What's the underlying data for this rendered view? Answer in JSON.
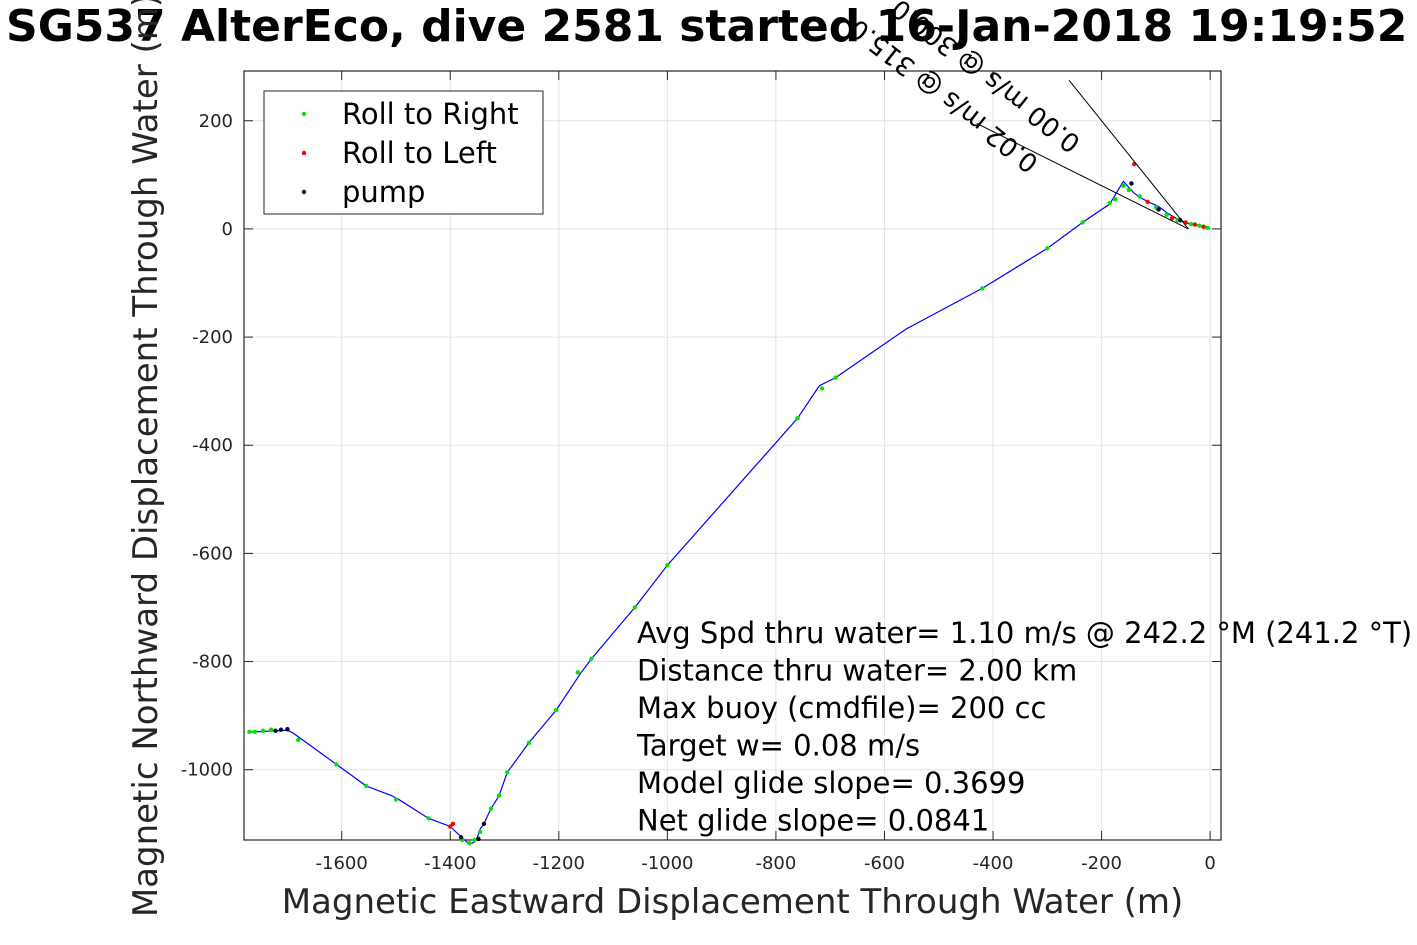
{
  "title": "SG537 AlterEco, dive 2581 started 16-Jan-2018 19:19:52",
  "chart_data": {
    "type": "line",
    "xlabel": "Magnetic Eastward Displacement Through Water (m)",
    "ylabel": "Magnetic Northward Displacement Through Water (m)",
    "xlim": [
      -1780,
      20
    ],
    "ylim": [
      -1130,
      292
    ],
    "xticks": [
      -1600,
      -1400,
      -1200,
      -1000,
      -800,
      -600,
      -400,
      -200,
      0
    ],
    "yticks": [
      200,
      0,
      -200,
      -400,
      -600,
      -800,
      -1000
    ],
    "grid": true,
    "legend_position": "top-left",
    "legend": [
      {
        "label": "Roll to Right",
        "color": "#00e600"
      },
      {
        "label": "Roll to Left",
        "color": "#ff0000"
      },
      {
        "label": "pump",
        "color": "#000033"
      }
    ],
    "track_color": "#0000ff",
    "track": {
      "x": [
        0,
        -5,
        -10,
        -20,
        -30,
        -40,
        -50,
        -60,
        -70,
        -80,
        -90,
        -100,
        -110,
        -125,
        -140,
        -160,
        -185,
        -235,
        -300,
        -420,
        -560,
        -690,
        -720,
        -760,
        -1000,
        -1060,
        -1140,
        -1160,
        -1205,
        -1255,
        -1295,
        -1310,
        -1325,
        -1338,
        -1345,
        -1350,
        -1355,
        -1360,
        -1368,
        -1378,
        -1400,
        -1440,
        -1495,
        -1508,
        -1555,
        -1610,
        -1665,
        -1690,
        -1700,
        -1720,
        -1740,
        -1760,
        -1770
      ],
      "y": [
        0,
        2,
        4,
        6,
        8,
        10,
        14,
        18,
        24,
        30,
        38,
        44,
        48,
        56,
        66,
        88,
        46,
        12,
        -36,
        -110,
        -185,
        -275,
        -290,
        -350,
        -622,
        -700,
        -795,
        -822,
        -890,
        -950,
        -1005,
        -1048,
        -1072,
        -1100,
        -1110,
        -1125,
        -1133,
        -1136,
        -1135,
        -1126,
        -1105,
        -1090,
        -1055,
        -1048,
        -1030,
        -990,
        -950,
        -932,
        -927,
        -928,
        -929,
        -930,
        -930
      ]
    },
    "roll_right_points": {
      "x": [
        -5,
        -20,
        -35,
        -60,
        -80,
        -100,
        -130,
        -150,
        -160,
        -175,
        -185,
        -235,
        -300,
        -420,
        -690,
        -715,
        -760,
        -1000,
        -1060,
        -1140,
        -1165,
        -1205,
        -1255,
        -1295,
        -1310,
        -1325,
        -1345,
        -1355,
        -1365,
        -1378,
        -1440,
        -1500,
        -1555,
        -1610,
        -1680,
        -1730,
        -1745,
        -1760,
        -1770
      ],
      "y": [
        2,
        6,
        9,
        16,
        26,
        40,
        60,
        72,
        80,
        55,
        48,
        12,
        -36,
        -110,
        -275,
        -295,
        -350,
        -622,
        -700,
        -795,
        -820,
        -890,
        -950,
        -1005,
        -1048,
        -1072,
        -1115,
        -1130,
        -1136,
        -1130,
        -1090,
        -1055,
        -1030,
        -990,
        -945,
        -926,
        -928,
        -930,
        -930
      ]
    },
    "roll_left_points": {
      "x": [
        -12,
        -28,
        -45,
        -70,
        -115,
        -140,
        -1400,
        -1395
      ],
      "y": [
        4,
        8,
        12,
        20,
        50,
        120,
        -1105,
        -1100
      ]
    },
    "pump_points": {
      "x": [
        -55,
        -95,
        -145,
        -1338,
        -1348,
        -1380,
        -1700,
        -1712,
        -1722
      ],
      "y": [
        16,
        36,
        84,
        -1100,
        -1128,
        -1125,
        -925,
        -926,
        -928
      ]
    },
    "heading_lines": [
      {
        "from": [
          -40,
          0
        ],
        "to": [
          -260,
          275
        ],
        "color": "#000000"
      },
      {
        "from": [
          -40,
          0
        ],
        "to": [
          -430,
          195
        ],
        "color": "#000000"
      }
    ],
    "rotated_annotations": [
      {
        "text": "0.00 m/s @ 300.0",
        "angle": 38
      },
      {
        "text": "0.02 m/s @ 315.0",
        "angle": 38
      }
    ],
    "stats": [
      "Avg Spd thru water=  1.10 m/s @ 242.2 °M (241.2 °T)",
      "Distance thru water=  2.00 km",
      "Max buoy (cmdfile)= 200 cc",
      "Target w= 0.08 m/s",
      "Model glide slope= 0.3699",
      "Net glide slope= 0.0841"
    ]
  }
}
